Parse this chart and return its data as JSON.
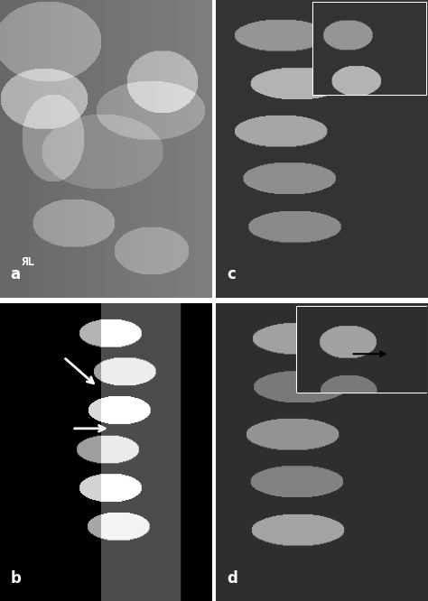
{
  "figure_width": 4.74,
  "figure_height": 6.66,
  "dpi": 100,
  "background_color": "#ffffff",
  "panels": [
    {
      "label": "a",
      "label_color": "white",
      "row": 0,
      "col": 0,
      "bg": "#888888"
    },
    {
      "label": "b",
      "label_color": "white",
      "row": 1,
      "col": 0,
      "bg": "#111111"
    },
    {
      "label": "c",
      "label_color": "white",
      "row": 0,
      "col": 1,
      "bg": "#333333"
    },
    {
      "label": "d",
      "label_color": "white",
      "row": 1,
      "col": 1,
      "bg": "#333333"
    }
  ],
  "label_fontsize": 12,
  "label_fontweight": "bold"
}
